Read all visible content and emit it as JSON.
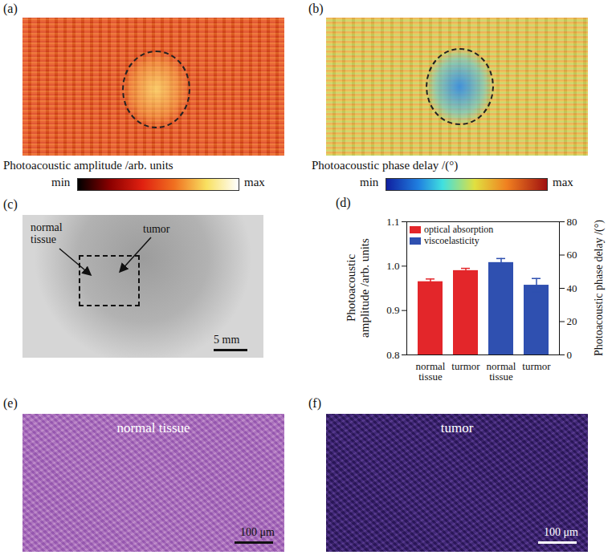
{
  "panels": {
    "a": {
      "letter": "(a)",
      "colorbar": {
        "label": "Photoacoustic amplitude /arb. units",
        "min_label": "min",
        "max_label": "max"
      }
    },
    "b": {
      "letter": "(b)",
      "colorbar": {
        "label": "Photoacoustic phase delay /(°)",
        "min_label": "min",
        "max_label": "max"
      }
    },
    "c": {
      "letter": "(c)",
      "labels": [
        "normal tissue",
        "tumor"
      ],
      "scale_bar": "5 mm"
    },
    "e": {
      "letter": "(e)",
      "label": "normal tissue",
      "scale_bar": "100 μm"
    },
    "f": {
      "letter": "(f)",
      "label": "tumor",
      "scale_bar": "100 μm"
    }
  },
  "chart_data": {
    "letter": "(d)",
    "type": "bar",
    "categories": [
      "normal tissue",
      "turmor",
      "normal tissue",
      "turmor"
    ],
    "series": [
      {
        "name": "optical absorption",
        "color": "#e3262a",
        "values": [
          0.965,
          0.99,
          null,
          null
        ],
        "errors": [
          0.006,
          0.005,
          null,
          null
        ]
      },
      {
        "name": "viscoelasticity",
        "color": "#2f50b0",
        "values": [
          null,
          null,
          55.5,
          41.9
        ],
        "errors": [
          null,
          null,
          2.4,
          4
        ],
        "axis": "y2"
      }
    ],
    "ylabel": "Photoacoustic amplitude /arb. units",
    "y2label": "Photoacoustic phase delay /(°)",
    "ylim": [
      0.8,
      1.1
    ],
    "yticks": [
      0.8,
      0.9,
      {
        "value": 1,
        "label": "1.0"
      },
      1.1
    ],
    "y2lim": [
      0,
      80
    ],
    "y2ticks": [
      0,
      20,
      40,
      60,
      80
    ],
    "legend": "top-left",
    "grid": false
  }
}
